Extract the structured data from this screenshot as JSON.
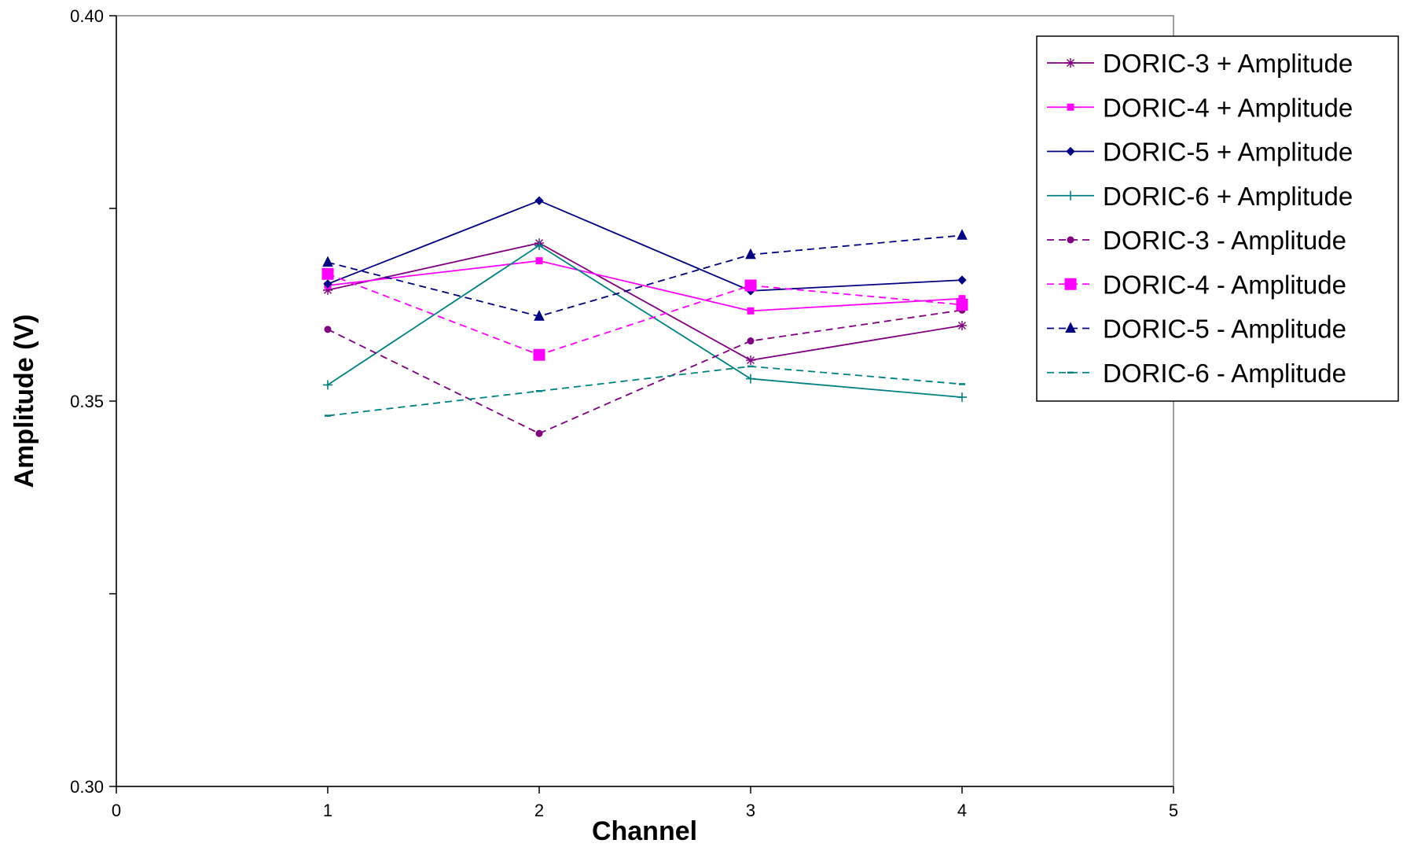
{
  "chart_data": {
    "type": "line",
    "title": "",
    "xlabel": "Channel",
    "ylabel": "Amplitude (V)",
    "xlim": [
      0,
      5
    ],
    "ylim": [
      0.3,
      0.4
    ],
    "x_ticks": [
      0,
      1,
      2,
      3,
      4,
      5
    ],
    "x_tick_labels": [
      "0",
      "1",
      "2",
      "3",
      "4",
      "5"
    ],
    "y_tick_values": [
      0.3,
      0.325,
      0.35,
      0.375,
      0.4
    ],
    "y_tick_labels": [
      "0.30",
      "",
      "0.35",
      "",
      "0.40"
    ],
    "grid": false,
    "legend_position": "top-right",
    "x": [
      1,
      2,
      3,
      4
    ],
    "series": [
      {
        "name": "DORIC-3 + Amplitude",
        "values": [
          0.3644,
          0.3705,
          0.3553,
          0.3598
        ],
        "color": "#800080",
        "dash": "solid",
        "marker": "star",
        "marker_size": 6
      },
      {
        "name": "DORIC-4 + Amplitude",
        "values": [
          0.365,
          0.3682,
          0.3617,
          0.3633
        ],
        "color": "#ff00ff",
        "dash": "solid",
        "marker": "square",
        "marker_size": 4
      },
      {
        "name": "DORIC-5 + Amplitude",
        "values": [
          0.3652,
          0.376,
          0.3643,
          0.3657
        ],
        "color": "#000080",
        "dash": "solid",
        "marker": "diamond",
        "marker_size": 5
      },
      {
        "name": "DORIC-6 + Amplitude",
        "values": [
          0.3521,
          0.3702,
          0.3529,
          0.3505
        ],
        "color": "#008080",
        "dash": "solid",
        "marker": "plus",
        "marker_size": 6
      },
      {
        "name": "DORIC-3 - Amplitude",
        "values": [
          0.3593,
          0.3458,
          0.3578,
          0.3618
        ],
        "color": "#800080",
        "dash": "dashed",
        "marker": "circle",
        "marker_size": 4
      },
      {
        "name": "DORIC-4 - Amplitude",
        "values": [
          0.3665,
          0.356,
          0.365,
          0.3625
        ],
        "color": "#ff00ff",
        "dash": "dashed",
        "marker": "square",
        "marker_size": 7
      },
      {
        "name": "DORIC-5 - Amplitude",
        "values": [
          0.368,
          0.361,
          0.369,
          0.3715
        ],
        "color": "#000080",
        "dash": "dashed",
        "marker": "triangle",
        "marker_size": 6
      },
      {
        "name": "DORIC-6 - Amplitude",
        "values": [
          0.3481,
          0.3513,
          0.3545,
          0.3522
        ],
        "color": "#008080",
        "dash": "dashed",
        "marker": "dash",
        "marker_size": 4
      }
    ]
  }
}
